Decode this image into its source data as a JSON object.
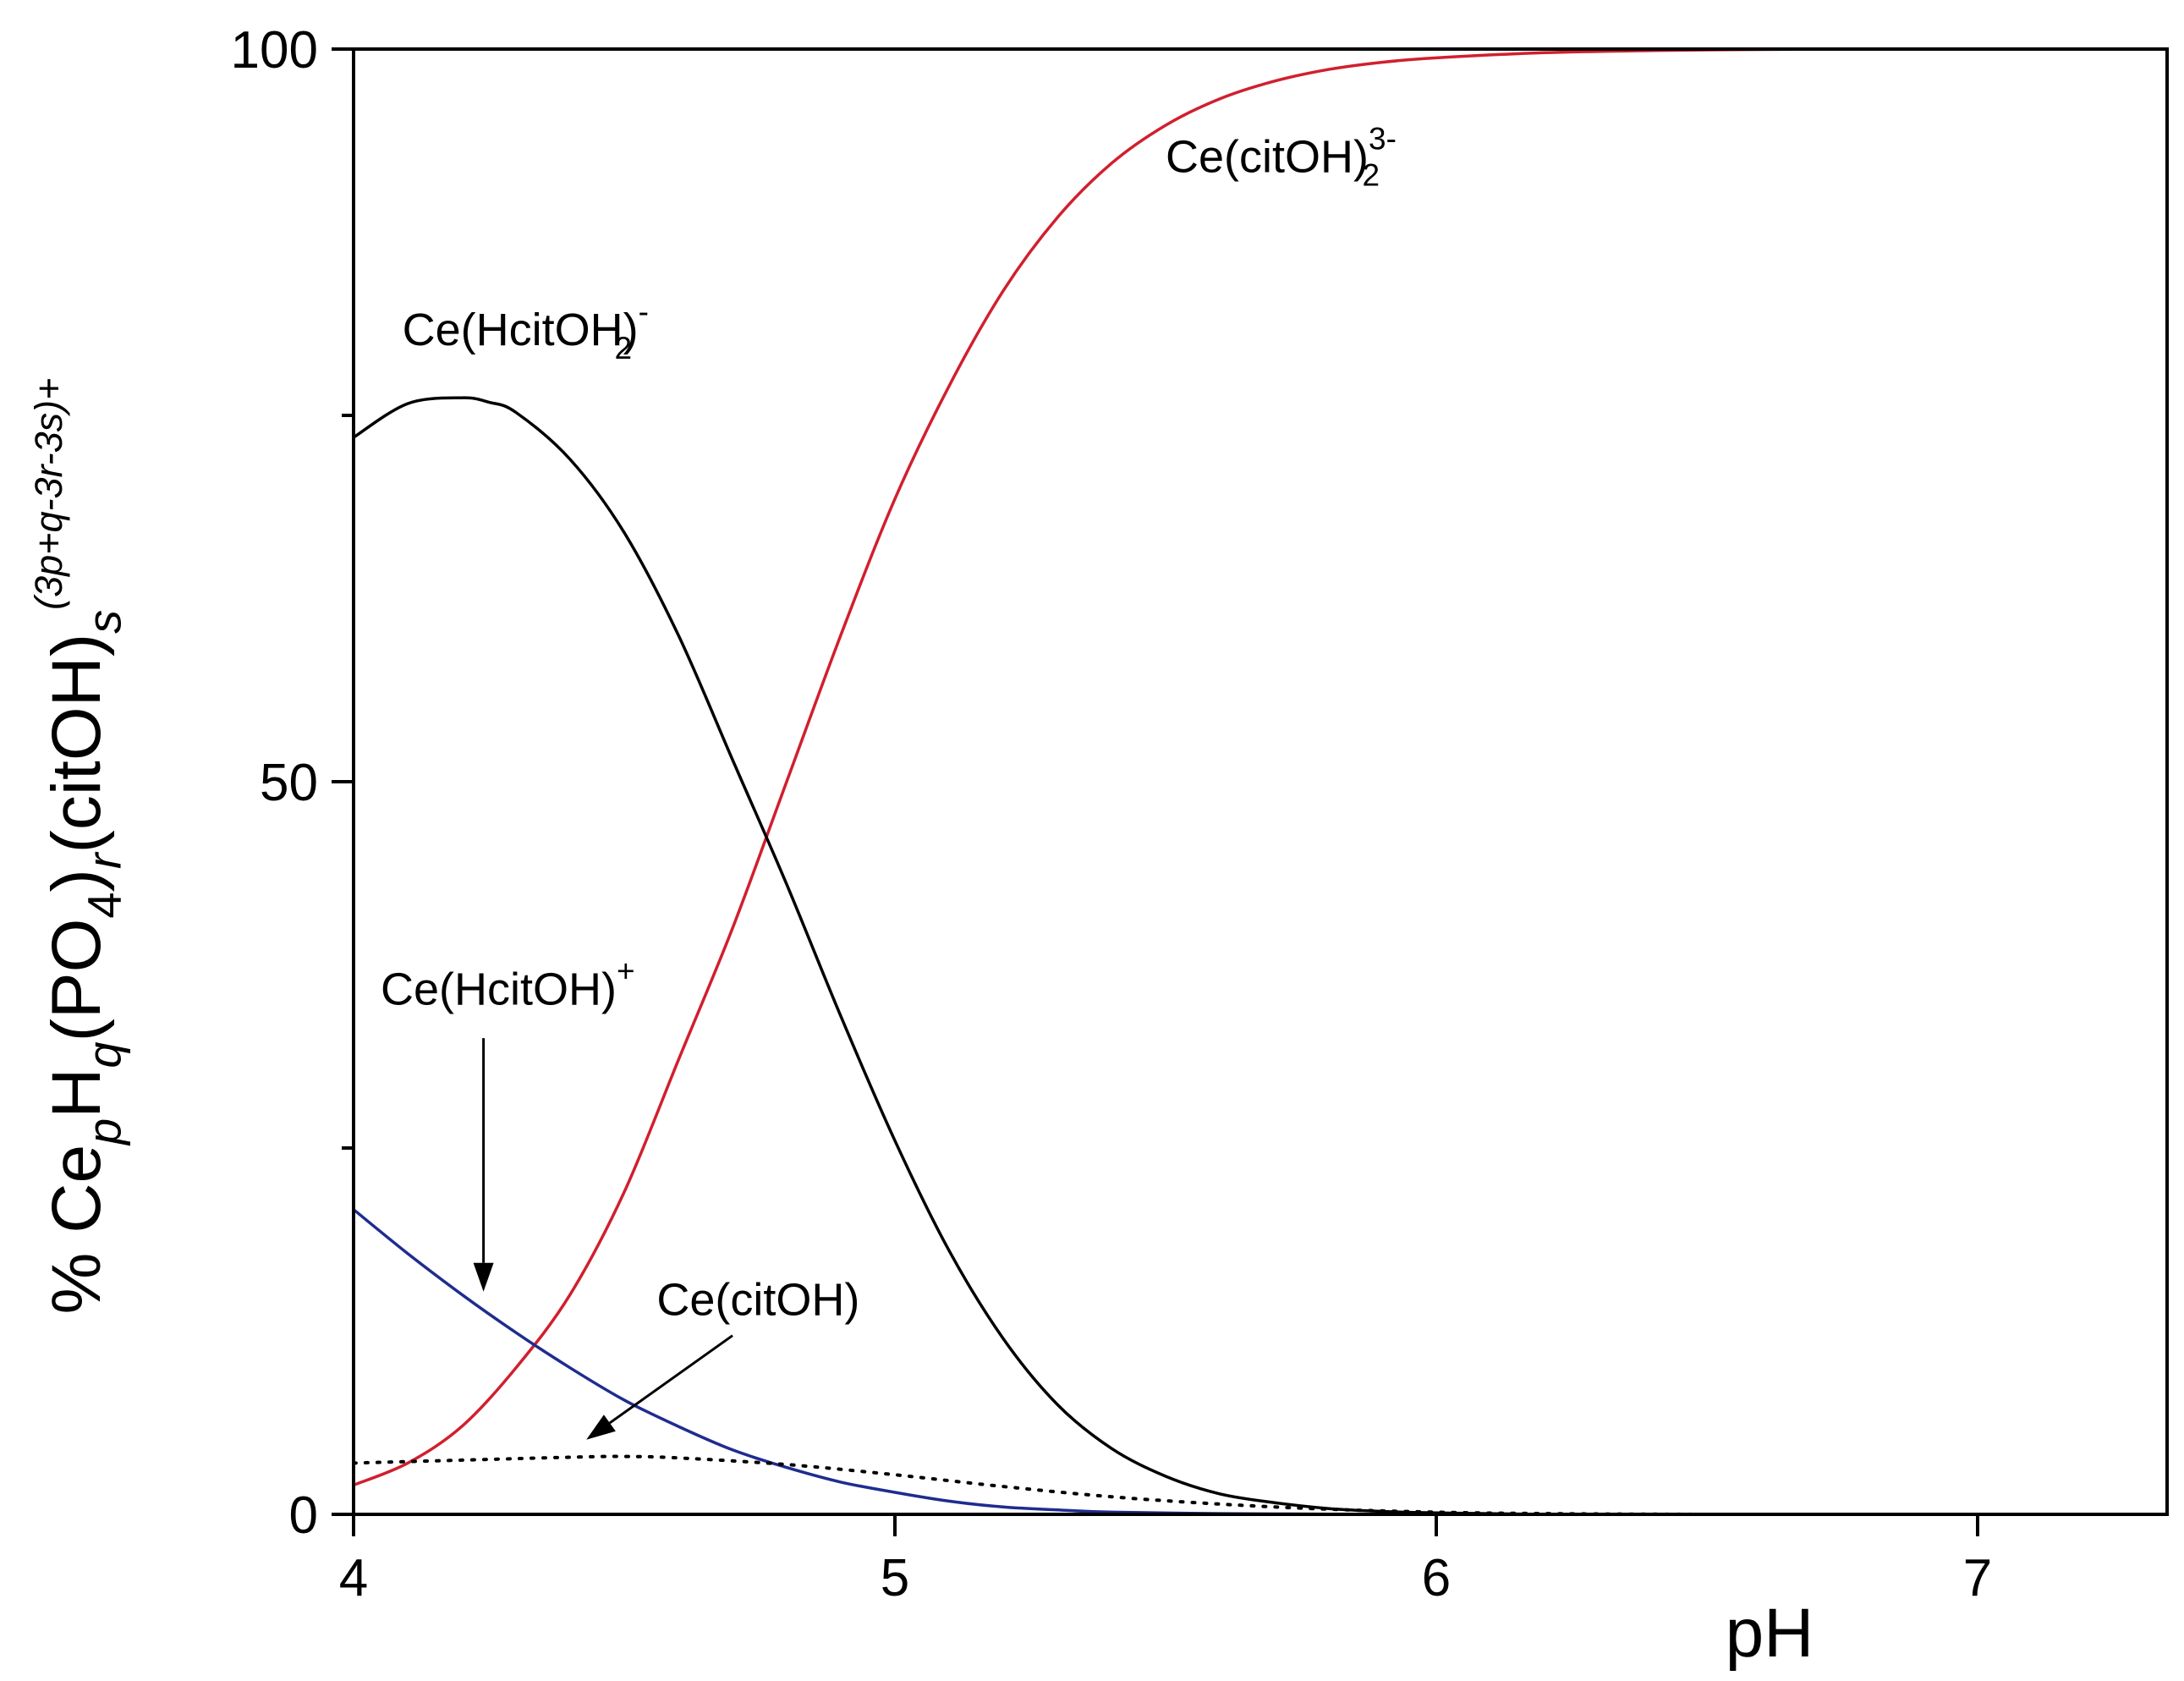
{
  "chart_data": {
    "type": "line",
    "title": "",
    "xlabel": "pH",
    "ylabel": {
      "parts": [
        {
          "text": "% Ce",
          "style": "normal"
        },
        {
          "text": "p",
          "style": "sub-italic"
        },
        {
          "text": "H",
          "style": "normal"
        },
        {
          "text": "q",
          "style": "sub-italic"
        },
        {
          "text": "(PO",
          "style": "normal"
        },
        {
          "text": "4",
          "style": "sub"
        },
        {
          "text": ")",
          "style": "normal"
        },
        {
          "text": "r",
          "style": "sub-italic"
        },
        {
          "text": "(citOH)",
          "style": "normal"
        },
        {
          "text": "s",
          "style": "sub-italic"
        },
        {
          "text": "(3p+q-3r-3s)+",
          "style": "sup-italic"
        }
      ]
    },
    "xlim": [
      4,
      7.35
    ],
    "ylim": [
      0,
      100
    ],
    "x_ticks": [
      4,
      5,
      6,
      7
    ],
    "x_tick_labels": [
      "4",
      "5",
      "6",
      "7"
    ],
    "y_ticks": [
      0,
      50,
      100
    ],
    "y_tick_labels": [
      "0",
      "50",
      "100"
    ],
    "y_minor_ticks": [
      25,
      75
    ],
    "grid": false,
    "legend": "none",
    "series": [
      {
        "color": "#d11f2e",
        "style": "solid",
        "x": [
          4.0,
          4.1,
          4.2,
          4.3,
          4.4,
          4.5,
          4.6,
          4.7,
          4.8,
          4.9,
          5.0,
          5.1,
          5.2,
          5.3,
          5.4,
          5.5,
          5.6,
          5.7,
          5.8,
          5.9,
          6.0,
          6.2,
          6.4,
          6.6,
          6.8,
          7.0,
          7.35
        ],
        "y": [
          2,
          3.5,
          6,
          10,
          15,
          22,
          31,
          40,
          50,
          60,
          69.3,
          77,
          83.5,
          88.5,
          92.2,
          94.8,
          96.6,
          97.8,
          98.6,
          99.1,
          99.4,
          99.75,
          99.9,
          99.97,
          100,
          100,
          100
        ]
      },
      {
        "color": "#000000",
        "style": "solid",
        "x": [
          4.0,
          4.1,
          4.2,
          4.25,
          4.3,
          4.4,
          4.5,
          4.6,
          4.7,
          4.8,
          4.9,
          5.0,
          5.1,
          5.2,
          5.3,
          5.4,
          5.5,
          5.6,
          5.7,
          5.8,
          5.9,
          6.0,
          6.2
        ],
        "y": [
          73.5,
          75.8,
          76.2,
          75.9,
          75.2,
          72,
          67,
          60,
          51.5,
          43,
          34,
          25.5,
          18,
          12,
          7.5,
          4.5,
          2.6,
          1.4,
          0.8,
          0.4,
          0.2,
          0.1,
          0
        ]
      },
      {
        "color": "#1f2c8f",
        "style": "solid",
        "x": [
          4.0,
          4.1,
          4.2,
          4.3,
          4.4,
          4.5,
          4.6,
          4.7,
          4.8,
          4.9,
          5.0,
          5.1,
          5.2,
          5.3,
          5.4,
          5.6,
          5.8,
          6.0,
          6.2
        ],
        "y": [
          20.8,
          17.8,
          15,
          12.4,
          10,
          7.8,
          6,
          4.4,
          3.2,
          2.2,
          1.5,
          0.9,
          0.5,
          0.3,
          0.15,
          0.05,
          0.02,
          0,
          0
        ]
      },
      {
        "color": "#000000",
        "style": "dotted",
        "x": [
          4.0,
          4.2,
          4.4,
          4.5,
          4.6,
          4.8,
          5.0,
          5.2,
          5.4,
          5.6,
          5.8,
          6.0,
          6.2,
          6.5
        ],
        "y": [
          3.5,
          3.7,
          3.9,
          3.95,
          3.85,
          3.4,
          2.7,
          1.9,
          1.2,
          0.7,
          0.35,
          0.15,
          0.05,
          0
        ]
      }
    ],
    "annotations": [
      {
        "id": "citoh2",
        "parts": [
          {
            "text": "Ce(citOH)",
            "style": "normal"
          },
          {
            "text": "3-",
            "style": "sup"
          },
          {
            "text": "2",
            "style": "sub"
          }
        ],
        "x": 5.5,
        "y": 91.6
      },
      {
        "id": "hcitoh2",
        "parts": [
          {
            "text": "Ce(HcitOH)",
            "style": "normal"
          },
          {
            "text": "-",
            "style": "sup"
          },
          {
            "text": "2",
            "style": "sub"
          }
        ],
        "x": 4.09,
        "y": 79.8
      },
      {
        "id": "hcitoh",
        "parts": [
          {
            "text": "Ce(HcitOH)",
            "style": "normal"
          },
          {
            "text": "+",
            "style": "sup"
          }
        ],
        "x": 4.05,
        "y": 34.8
      },
      {
        "id": "citoh",
        "parts": [
          {
            "text": "Ce(citOH)",
            "style": "normal"
          }
        ],
        "x": 4.56,
        "y": 13.6
      }
    ],
    "arrows": [
      {
        "id": "arrow-hcitoh",
        "from": [
          4.24,
          32.5
        ],
        "to": [
          4.24,
          15.2
        ]
      },
      {
        "id": "arrow-citoh",
        "from": [
          4.7,
          12.2
        ],
        "to": [
          4.43,
          5.1
        ]
      }
    ]
  }
}
